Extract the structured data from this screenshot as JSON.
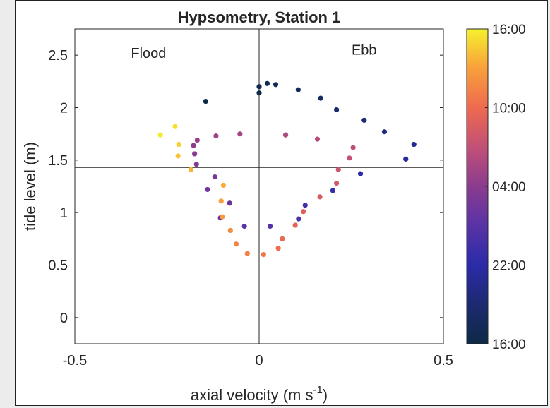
{
  "chart_data": {
    "type": "scatter",
    "title": "Hypsometry, Station 1",
    "xlabel": "axial velocity (m s",
    "xlabel_exponent": "-1",
    "xlabel_close": ")",
    "ylabel": "tide level (m)",
    "xlim": [
      -0.5,
      0.5
    ],
    "ylim": [
      -0.25,
      2.75
    ],
    "xticks": [
      -0.5,
      0,
      0.5
    ],
    "xtick_labels": [
      "-0.5",
      "0",
      "0.5"
    ],
    "yticks": [
      0,
      0.5,
      1,
      1.5,
      2,
      2.5
    ],
    "ytick_labels": [
      "0",
      "0.5",
      "1",
      "1.5",
      "2",
      "2.5"
    ],
    "grid": false,
    "reference_lines": {
      "x": 0,
      "y": 1.43
    },
    "annotations": [
      {
        "text": "Flood",
        "x": -0.3,
        "y": 2.52
      },
      {
        "text": "Ebb",
        "x": 0.285,
        "y": 2.55
      }
    ],
    "colorbar": {
      "colormap": "plasma",
      "labels": [
        "16:00",
        "10:00",
        "04:00",
        "22:00",
        "16:00"
      ],
      "range_hours": [
        0,
        24
      ]
    },
    "points": [
      {
        "x": -0.145,
        "y": 2.06,
        "h": 0.0
      },
      {
        "x": 0.0,
        "y": 2.14,
        "h": 0.3
      },
      {
        "x": 0.0,
        "y": 2.2,
        "h": 0.5
      },
      {
        "x": 0.022,
        "y": 2.23,
        "h": 0.8
      },
      {
        "x": 0.045,
        "y": 2.22,
        "h": 1.1
      },
      {
        "x": 0.106,
        "y": 2.17,
        "h": 1.6
      },
      {
        "x": 0.167,
        "y": 2.09,
        "h": 2.2
      },
      {
        "x": 0.21,
        "y": 1.98,
        "h": 2.7
      },
      {
        "x": 0.285,
        "y": 1.88,
        "h": 3.3
      },
      {
        "x": 0.34,
        "y": 1.77,
        "h": 3.9
      },
      {
        "x": 0.42,
        "y": 1.65,
        "h": 4.6
      },
      {
        "x": 0.398,
        "y": 1.51,
        "h": 5.2
      },
      {
        "x": 0.275,
        "y": 1.37,
        "h": 6.0
      },
      {
        "x": 0.2,
        "y": 1.21,
        "h": 6.8
      },
      {
        "x": 0.125,
        "y": 1.07,
        "h": 7.6
      },
      {
        "x": 0.107,
        "y": 0.94,
        "h": 8.1
      },
      {
        "x": 0.03,
        "y": 0.87,
        "h": 8.6
      },
      {
        "x": -0.04,
        "y": 0.87,
        "h": 9.1
      },
      {
        "x": -0.105,
        "y": 0.95,
        "h": 9.6
      },
      {
        "x": -0.08,
        "y": 1.09,
        "h": 10.1
      },
      {
        "x": -0.14,
        "y": 1.22,
        "h": 10.5
      },
      {
        "x": -0.12,
        "y": 1.34,
        "h": 11.0
      },
      {
        "x": -0.17,
        "y": 1.46,
        "h": 11.4
      },
      {
        "x": -0.175,
        "y": 1.56,
        "h": 11.8
      },
      {
        "x": -0.178,
        "y": 1.64,
        "h": 12.2
      },
      {
        "x": -0.168,
        "y": 1.69,
        "h": 12.6
      },
      {
        "x": -0.117,
        "y": 1.73,
        "h": 13.0
      },
      {
        "x": -0.052,
        "y": 1.75,
        "h": 13.4
      },
      {
        "x": 0.072,
        "y": 1.74,
        "h": 14.0
      },
      {
        "x": 0.158,
        "y": 1.7,
        "h": 14.4
      },
      {
        "x": 0.255,
        "y": 1.62,
        "h": 14.8
      },
      {
        "x": 0.245,
        "y": 1.52,
        "h": 15.2
      },
      {
        "x": 0.215,
        "y": 1.41,
        "h": 15.6
      },
      {
        "x": 0.21,
        "y": 1.28,
        "h": 16.0
      },
      {
        "x": 0.165,
        "y": 1.15,
        "h": 16.4
      },
      {
        "x": 0.12,
        "y": 1.01,
        "h": 16.9
      },
      {
        "x": 0.098,
        "y": 0.88,
        "h": 17.3
      },
      {
        "x": 0.063,
        "y": 0.75,
        "h": 17.8
      },
      {
        "x": 0.052,
        "y": 0.66,
        "h": 18.2
      },
      {
        "x": 0.012,
        "y": 0.6,
        "h": 18.7
      },
      {
        "x": -0.032,
        "y": 0.61,
        "h": 19.1
      },
      {
        "x": -0.062,
        "y": 0.7,
        "h": 19.5
      },
      {
        "x": -0.078,
        "y": 0.83,
        "h": 20.0
      },
      {
        "x": -0.1,
        "y": 0.96,
        "h": 20.5
      },
      {
        "x": -0.103,
        "y": 1.11,
        "h": 20.9
      },
      {
        "x": -0.097,
        "y": 1.26,
        "h": 21.4
      },
      {
        "x": -0.185,
        "y": 1.41,
        "h": 21.8
      },
      {
        "x": -0.22,
        "y": 1.54,
        "h": 22.3
      },
      {
        "x": -0.218,
        "y": 1.65,
        "h": 22.8
      },
      {
        "x": -0.228,
        "y": 1.82,
        "h": 23.3
      },
      {
        "x": -0.268,
        "y": 1.74,
        "h": 23.7
      }
    ]
  }
}
